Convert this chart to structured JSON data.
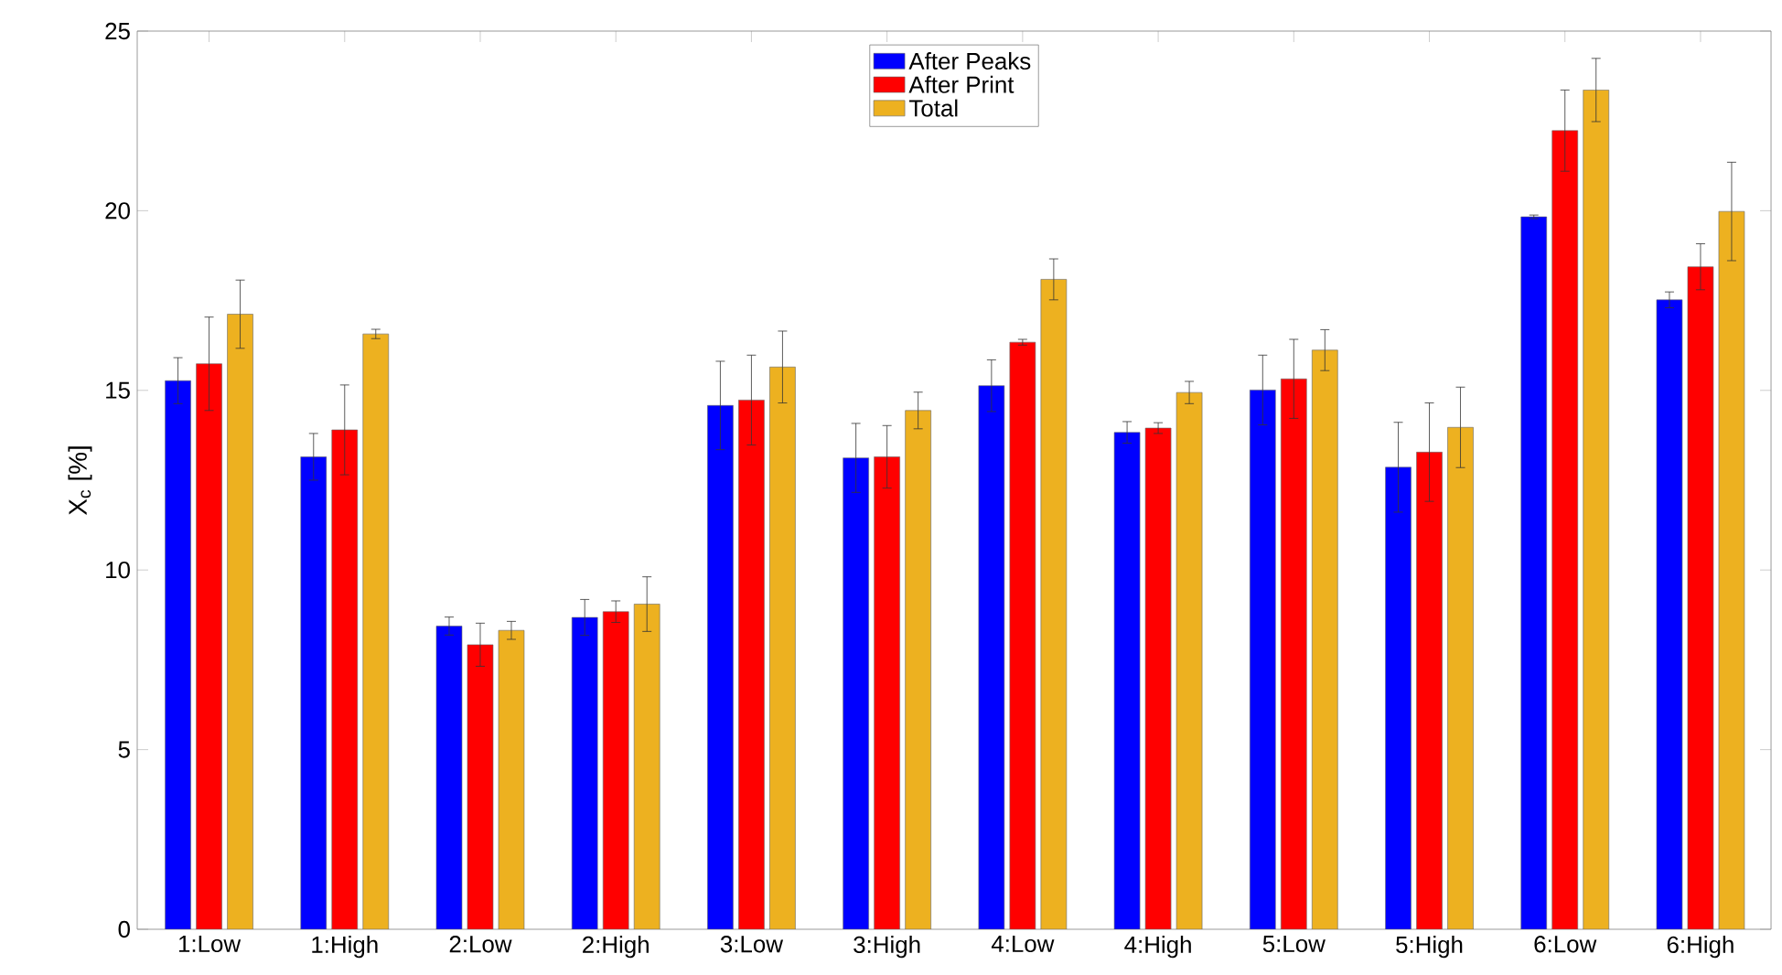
{
  "chart_data": {
    "type": "bar",
    "ylabel": "X$_{c}$ [%]",
    "categories": [
      "1:Low",
      "1:High",
      "2:Low",
      "2:High",
      "3:Low",
      "3:High",
      "4:Low",
      "4:High",
      "5:Low",
      "5:High",
      "6:Low",
      "6:High"
    ],
    "series": [
      {
        "name": "After Peaks",
        "color": "#0000ff",
        "values": [
          15.27,
          13.15,
          8.44,
          8.68,
          14.58,
          13.12,
          15.13,
          13.83,
          15.01,
          12.86,
          19.83,
          17.52
        ],
        "errors": [
          0.64,
          0.65,
          0.25,
          0.5,
          1.23,
          0.96,
          0.72,
          0.3,
          0.97,
          1.25,
          0.05,
          0.22
        ]
      },
      {
        "name": "After Print",
        "color": "#ff0000",
        "values": [
          15.74,
          13.9,
          7.92,
          8.84,
          14.73,
          13.15,
          16.34,
          13.95,
          15.32,
          13.28,
          22.23,
          18.44
        ],
        "errors": [
          1.3,
          1.25,
          0.6,
          0.3,
          1.25,
          0.87,
          0.08,
          0.15,
          1.1,
          1.37,
          1.13,
          0.64
        ]
      },
      {
        "name": "Total",
        "color": "#edb120",
        "values": [
          17.12,
          16.57,
          8.32,
          9.05,
          15.65,
          14.44,
          18.09,
          14.94,
          16.12,
          13.97,
          23.36,
          19.98
        ],
        "errors": [
          0.95,
          0.13,
          0.25,
          0.76,
          1.0,
          0.51,
          0.57,
          0.31,
          0.57,
          1.12,
          0.88,
          1.37
        ]
      }
    ],
    "ylim": [
      0,
      25
    ],
    "yticks": [
      0,
      5,
      10,
      15,
      20,
      25
    ],
    "grid": false,
    "legend": "top"
  }
}
